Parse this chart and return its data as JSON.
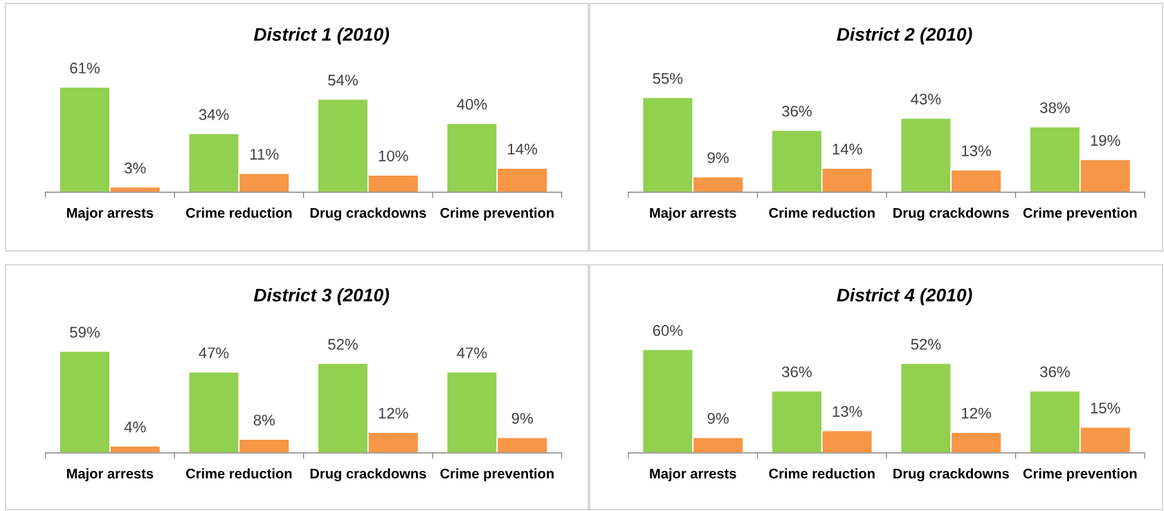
{
  "chart_data": [
    {
      "type": "bar",
      "title": "District 1 (2010)",
      "categories": [
        "Major arrests",
        "Crime reduction",
        "Drug crackdowns",
        "Crime prevention"
      ],
      "series": [
        {
          "color": "#92d050",
          "values": [
            61,
            34,
            54,
            40
          ],
          "value_labels": [
            "61%",
            "34%",
            "54%",
            "40%"
          ]
        },
        {
          "color": "#f79646",
          "values": [
            3,
            11,
            10,
            14
          ],
          "value_labels": [
            "3%",
            "11%",
            "10%",
            "14%"
          ]
        }
      ]
    },
    {
      "type": "bar",
      "title": "District 2 (2010)",
      "categories": [
        "Major arrests",
        "Crime reduction",
        "Drug crackdowns",
        "Crime prevention"
      ],
      "series": [
        {
          "color": "#92d050",
          "values": [
            55,
            36,
            43,
            38
          ],
          "value_labels": [
            "55%",
            "36%",
            "43%",
            "38%"
          ]
        },
        {
          "color": "#f79646",
          "values": [
            9,
            14,
            13,
            19
          ],
          "value_labels": [
            "9%",
            "14%",
            "13%",
            "19%"
          ]
        }
      ]
    },
    {
      "type": "bar",
      "title": "District 3 (2010)",
      "categories": [
        "Major arrests",
        "Crime reduction",
        "Drug crackdowns",
        "Crime prevention"
      ],
      "series": [
        {
          "color": "#92d050",
          "values": [
            59,
            47,
            52,
            47
          ],
          "value_labels": [
            "59%",
            "47%",
            "52%",
            "47%"
          ]
        },
        {
          "color": "#f79646",
          "values": [
            4,
            8,
            12,
            9
          ],
          "value_labels": [
            "4%",
            "8%",
            "12%",
            "9%"
          ]
        }
      ]
    },
    {
      "type": "bar",
      "title": "District 4 (2010)",
      "categories": [
        "Major arrests",
        "Crime reduction",
        "Drug crackdowns",
        "Crime prevention"
      ],
      "series": [
        {
          "color": "#92d050",
          "values": [
            60,
            36,
            52,
            36
          ],
          "value_labels": [
            "60%",
            "36%",
            "52%",
            "36%"
          ]
        },
        {
          "color": "#f79646",
          "values": [
            9,
            13,
            12,
            15
          ],
          "value_labels": [
            "9%",
            "13%",
            "12%",
            "15%"
          ]
        }
      ]
    }
  ]
}
